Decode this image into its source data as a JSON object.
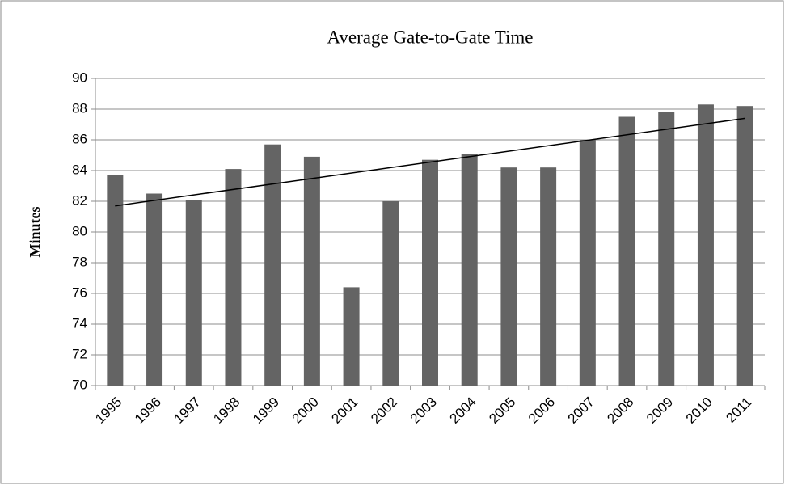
{
  "chart_data": {
    "type": "bar",
    "title": "Average Gate-to-Gate Time",
    "y_label": "Minutes",
    "categories": [
      "1995",
      "1996",
      "1997",
      "1998",
      "1999",
      "2000",
      "2001",
      "2002",
      "2003",
      "2004",
      "2005",
      "2006",
      "2007",
      "2008",
      "2009",
      "2010",
      "2011"
    ],
    "values": [
      83.7,
      82.5,
      82.1,
      84.1,
      85.7,
      84.9,
      76.4,
      82.0,
      84.7,
      85.1,
      84.2,
      84.2,
      86.0,
      87.5,
      87.8,
      88.3,
      88.2
    ],
    "color": "#646464",
    "trendline": {
      "values": [
        81.7,
        87.4
      ],
      "color": "#000000"
    },
    "ylim": [
      70,
      90
    ],
    "yticks": [
      70,
      72,
      74,
      76,
      78,
      80,
      82,
      84,
      86,
      88,
      90
    ],
    "grid": true
  }
}
